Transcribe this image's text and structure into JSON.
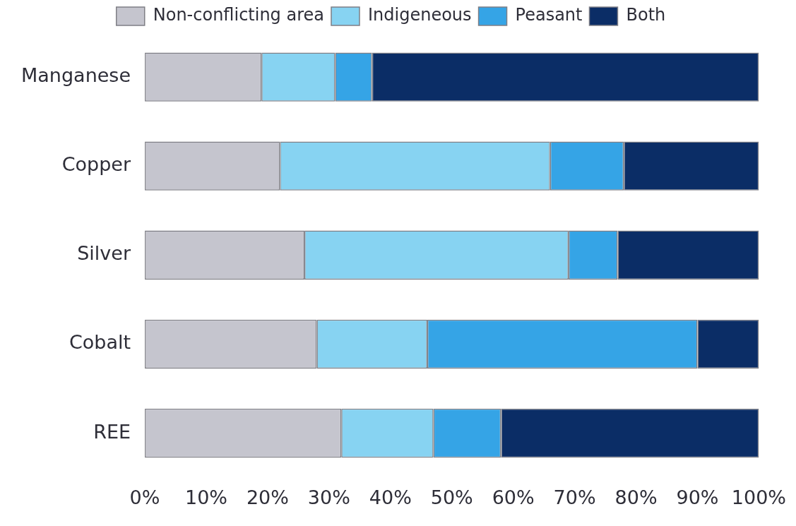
{
  "chart_data": {
    "type": "bar",
    "orientation": "horizontal",
    "stacked": true,
    "legend": "top",
    "grid": false,
    "categories": [
      "Manganese",
      "Copper",
      "Silver",
      "Cobalt",
      "REE"
    ],
    "series": [
      {
        "name": "Non-conflicting area",
        "color": "#c5c5ce",
        "values": [
          19,
          22,
          26,
          28,
          32
        ]
      },
      {
        "name": "Indigeneous",
        "color": "#87d3f2",
        "values": [
          12,
          44,
          43,
          18,
          15
        ]
      },
      {
        "name": "Peasant",
        "color": "#35a4e6",
        "values": [
          6,
          12,
          8,
          44,
          11
        ]
      },
      {
        "name": "Both",
        "color": "#0b2d66",
        "values": [
          63,
          22,
          23,
          10,
          42
        ]
      }
    ],
    "xlim": [
      0,
      100
    ],
    "xticks": [
      {
        "value": 0,
        "label": "0%"
      },
      {
        "value": 10,
        "label": "10%"
      },
      {
        "value": 20,
        "label": "20%"
      },
      {
        "value": 30,
        "label": "30%"
      },
      {
        "value": 40,
        "label": "40%"
      },
      {
        "value": 50,
        "label": "50%"
      },
      {
        "value": 60,
        "label": "60%"
      },
      {
        "value": 70,
        "label": "70%"
      },
      {
        "value": 80,
        "label": "80%"
      },
      {
        "value": 90,
        "label": "90%"
      },
      {
        "value": 100,
        "label": "100%"
      }
    ]
  }
}
